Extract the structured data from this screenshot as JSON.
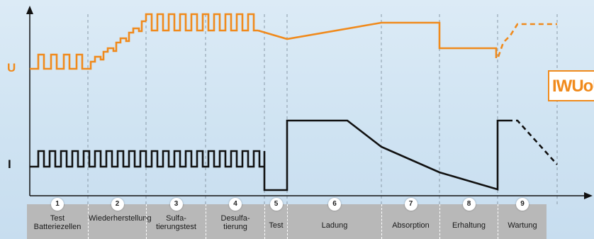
{
  "axes": {
    "u_label": "U",
    "i_label": "I"
  },
  "badge": {
    "text": "IWUoU"
  },
  "colors": {
    "voltage": "#f08a1c",
    "current": "#111111",
    "band": "#b8b8b8"
  },
  "phases": [
    {
      "number": "1",
      "label": "Test\nBatteriezellen"
    },
    {
      "number": "2",
      "label": "Wiederherstellung"
    },
    {
      "number": "3",
      "label": "Sulfa-\ntierungstest"
    },
    {
      "number": "4",
      "label": "Desulfa-\ntierung"
    },
    {
      "number": "5",
      "label": "Test"
    },
    {
      "number": "6",
      "label": "Ladung"
    },
    {
      "number": "7",
      "label": "Absorption"
    },
    {
      "number": "8",
      "label": "Erhaltung"
    },
    {
      "number": "9",
      "label": "Wartung"
    }
  ]
}
